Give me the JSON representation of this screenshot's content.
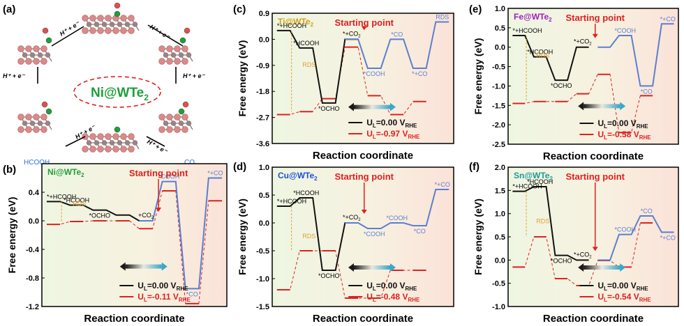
{
  "figure": {
    "panel_a": {
      "label": "(a)",
      "center_label": "Ni@WTe",
      "center_sub": "2",
      "step_label": "H⁺ + e⁻",
      "hcooh_label": "HCOOH",
      "co_label": "CO"
    },
    "common": {
      "x_title": "Reaction coordinate",
      "y_title": "Free energy (eV)"
    }
  },
  "chart_data": [
    {
      "panel": "(b)",
      "type": "line",
      "catalyst": "Ni@WTe",
      "catalyst_sub": "2",
      "catalyst_color": "#1f9e3a",
      "ylim": [
        -1.2,
        0.8
      ],
      "yticks": [
        {
          "v": 0.4,
          "t": "0.4"
        },
        {
          "v": 0.0,
          "t": "0.0"
        },
        {
          "v": -0.4,
          "t": "-0.4"
        },
        {
          "v": -0.8,
          "t": "-0.8"
        },
        {
          "v": -1.2,
          "t": "-1.2"
        }
      ],
      "levels_black": [
        0.27,
        0.22,
        0.15,
        0.08,
        0.0
      ],
      "levels_blue": [
        0.0,
        0.55,
        -0.95,
        0.6
      ],
      "levels_red": [
        -0.05,
        -0.01,
        0.0,
        0.0,
        -0.11,
        0.42,
        -1.16,
        0.28
      ],
      "labels": [
        "*+HCOOH",
        "*HCOOH",
        "*OCHO",
        "+CO",
        "*COOH",
        "*CO",
        "*+CO",
        "RDS"
      ],
      "start_text": "Starting point",
      "legend": [
        {
          "main": "U",
          "sub": "L",
          "tail": "=0.00 V",
          "tsub": "RHE"
        },
        {
          "main": "U",
          "sub": "L",
          "tail": "=-0.11 V",
          "tsub": "RHE"
        }
      ]
    },
    {
      "panel": "(c)",
      "type": "line",
      "catalyst": "Ti@WTe",
      "catalyst_sub": "2",
      "catalyst_color": "#d4a017",
      "ylim": [
        -3.6,
        0.9
      ],
      "yticks": [
        {
          "v": 0.9,
          "t": "0.9"
        },
        {
          "v": 0.0,
          "t": "0.0"
        },
        {
          "v": -0.9,
          "t": "-0.9"
        },
        {
          "v": -1.8,
          "t": "-1.8"
        },
        {
          "v": -2.7,
          "t": "-2.7"
        },
        {
          "v": -3.6,
          "t": "-3.6"
        }
      ],
      "levels_black": [
        0.3,
        -0.3,
        -2.2,
        0.0
      ],
      "levels_blue": [
        0.0,
        -1.0,
        0.0,
        -1.0,
        0.6
      ],
      "levels_red": [
        -2.6,
        -2.5,
        -2.05,
        -0.27,
        -1.95,
        -2.6,
        -2.15
      ],
      "labels": [
        "*+HCOOH",
        "*HCOOH",
        "*OCHO",
        "*+CO",
        "*COOH",
        "*CO",
        "*+CO",
        "RDS",
        "*COOH"
      ],
      "start_text": "Starting point",
      "legend": [
        {
          "main": "U",
          "sub": "L",
          "tail": "=0.00 V",
          "tsub": "RHE"
        },
        {
          "main": "U",
          "sub": "L",
          "tail": "=-0.97 V",
          "tsub": "RHE"
        }
      ]
    },
    {
      "panel": "(d)",
      "type": "line",
      "catalyst": "Cu@WTe",
      "catalyst_sub": "2",
      "catalyst_color": "#1f4fd6",
      "ylim": [
        -1.5,
        1.0
      ],
      "yticks": [
        {
          "v": 1.0,
          "t": "1.0"
        },
        {
          "v": 0.5,
          "t": "0.5"
        },
        {
          "v": 0.0,
          "t": "0.0"
        },
        {
          "v": -0.5,
          "t": "-0.5"
        },
        {
          "v": -1.0,
          "t": "-1.0"
        },
        {
          "v": -1.5,
          "t": "-1.5"
        }
      ],
      "levels_black": [
        0.3,
        0.45,
        -0.85,
        0.0
      ],
      "levels_blue": [
        0.0,
        -0.1,
        0.0,
        -0.05,
        0.6
      ],
      "levels_red": [
        -1.2,
        -0.5,
        -0.5,
        -1.35,
        -1.35,
        -0.85,
        -0.85
      ],
      "labels": [
        "*+HCOOH",
        "*HCOOH",
        "*OCHO",
        "*+CO",
        "*COOH",
        "*COOH",
        "*CO",
        "*+CO",
        "RDS"
      ],
      "start_text": "Starting point",
      "legend": [
        {
          "main": "U",
          "sub": "L",
          "tail": "=0.00 V",
          "tsub": "RHE"
        },
        {
          "main": "U",
          "sub": "L",
          "tail": "=-0.48 V",
          "tsub": "RHE"
        }
      ]
    },
    {
      "panel": "(e)",
      "type": "line",
      "catalyst": "Fe@WTe",
      "catalyst_sub": "2",
      "catalyst_color": "#a020c0",
      "ylim": [
        -2.5,
        1.0
      ],
      "yticks": [
        {
          "v": 1.0,
          "t": "1.0"
        },
        {
          "v": 0.5,
          "t": "0.5"
        },
        {
          "v": 0.0,
          "t": "0.0"
        },
        {
          "v": -0.5,
          "t": "-0.5"
        },
        {
          "v": -1.0,
          "t": "-1.0"
        },
        {
          "v": -1.5,
          "t": "-1.5"
        },
        {
          "v": -2.0,
          "t": "-2.0"
        },
        {
          "v": -2.5,
          "t": "-2.5"
        }
      ],
      "levels_black": [
        0.3,
        -0.25,
        -0.85,
        0.0
      ],
      "levels_blue": [
        0.0,
        0.3,
        -1.0,
        0.6
      ],
      "levels_red": [
        -1.45,
        -1.4,
        -1.4,
        -1.2,
        -0.7,
        -2.2,
        -1.25
      ],
      "labels": [
        "*+HCOOH",
        "*HCOOH",
        "*OCHO",
        "*+CO",
        "*COOH",
        "*CO",
        "*+CO",
        "RDS"
      ],
      "start_text": "Starting point",
      "legend": [
        {
          "main": "U",
          "sub": "L",
          "tail": "=0.00 V",
          "tsub": "RHE"
        },
        {
          "main": "U",
          "sub": "L",
          "tail": "=-0.58 V",
          "tsub": "RHE"
        }
      ]
    },
    {
      "panel": "(f)",
      "type": "line",
      "catalyst": "Sn@WTe",
      "catalyst_sub": "2",
      "catalyst_color": "#1a9a9a",
      "ylim": [
        -1.0,
        2.0
      ],
      "yticks": [
        {
          "v": 2.0,
          "t": "2.0"
        },
        {
          "v": 1.5,
          "t": "1.5"
        },
        {
          "v": 1.0,
          "t": "1.0"
        },
        {
          "v": 0.5,
          "t": "0.5"
        },
        {
          "v": 0.0,
          "t": "0.0"
        },
        {
          "v": -0.5,
          "t": "-0.5"
        },
        {
          "v": -1.0,
          "t": "-1.0"
        }
      ],
      "levels_black": [
        1.48,
        1.58,
        0.1,
        0.0
      ],
      "levels_blue": [
        0.0,
        0.55,
        0.95,
        0.6
      ],
      "levels_red": [
        -0.15,
        0.5,
        -0.4,
        -0.55,
        -0.01,
        -0.15,
        0.8
      ],
      "labels": [
        "*+HCOOH",
        "*HCOOH",
        "*OCHO",
        "*+CO",
        "*COOH",
        "*CO",
        "*+CO",
        "RDS"
      ],
      "start_text": "Starting point",
      "legend": [
        {
          "main": "U",
          "sub": "L",
          "tail": "=0.00 V",
          "tsub": "RHE"
        },
        {
          "main": "U",
          "sub": "L",
          "tail": "=-0.54 V",
          "tsub": "RHE"
        }
      ]
    }
  ]
}
